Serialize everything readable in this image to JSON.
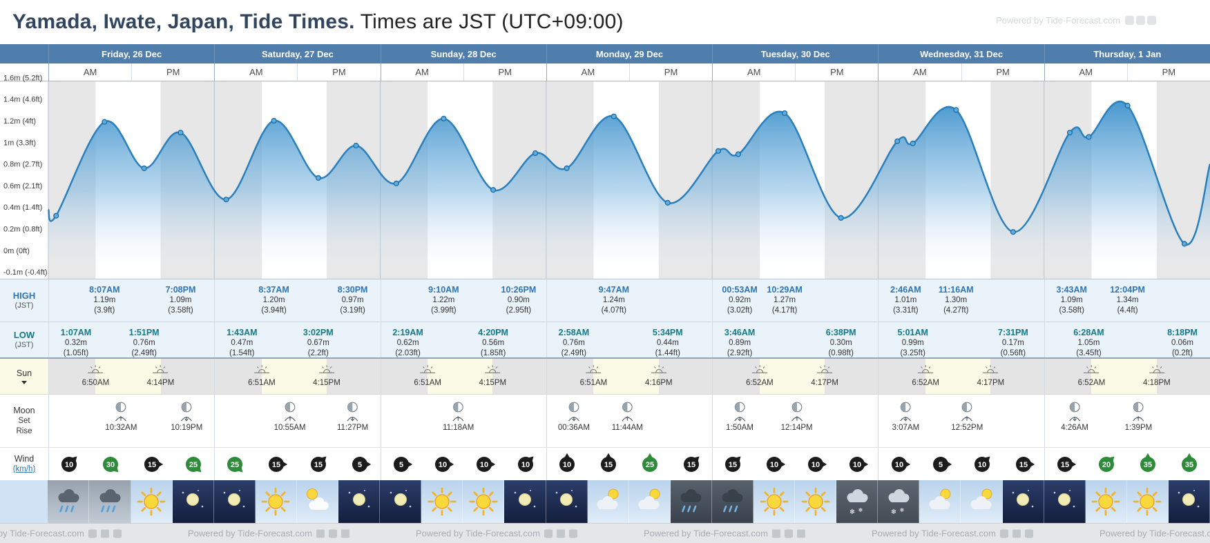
{
  "page_title": {
    "bold": "Yamada, Iwate, Japan, Tide Times.",
    "normal": "Times are JST (UTC+09:00)"
  },
  "watermark_text": "Powered by Tide-Forecast.com",
  "ampm": {
    "am": "AM",
    "pm": "PM"
  },
  "row_labels": {
    "high": "HIGH",
    "low": "LOW",
    "jst": "(JST)",
    "sun": "Sun",
    "moon": "Moon",
    "set": "Set",
    "rise": "Rise",
    "wind": "Wind",
    "wind_unit": "(km/h)"
  },
  "y_axis_labels": [
    "1.6m (5.2ft)",
    "1.4m (4.6ft)",
    "1.2m (4ft)",
    "1m (3.3ft)",
    "0.8m (2.7ft)",
    "0.6m (2.1ft)",
    "0.4m (1.4ft)",
    "0.2m (0.8ft)",
    "0m (0ft)",
    "-0.1m (-0.4ft)"
  ],
  "colors": {
    "header_blue": "#4f7dac",
    "high_time_blue": "#2e75b5",
    "low_time_teal": "#117a8a",
    "curve_blue": "#2a7fbd",
    "night_shade_gray": "#e7e7e7",
    "sun_row_yellow": "#fbfae6",
    "wind_normal": "#1c1c1c",
    "wind_strong_green": "#2e8b3a"
  },
  "days": [
    {
      "name": "Friday, 26 Dec",
      "high_tides": [
        {
          "time": "8:07AM",
          "hour": 8.12,
          "height_m": "1.19m",
          "height_ft": "(3.9ft)"
        },
        {
          "time": "7:08PM",
          "hour": 19.13,
          "height_m": "1.09m",
          "height_ft": "(3.58ft)"
        }
      ],
      "low_tides": [
        {
          "time": "1:07AM",
          "hour": 1.12,
          "height_m": "0.32m",
          "height_ft": "(1.05ft)"
        },
        {
          "time": "1:51PM",
          "hour": 13.85,
          "height_m": "0.76m",
          "height_ft": "(2.49ft)"
        }
      ],
      "sunrise": {
        "time": "6:50AM",
        "hour": 6.83
      },
      "sunset": {
        "time": "4:14PM",
        "hour": 16.23
      },
      "moon_events": [
        {
          "type": "rise",
          "time": "10:32AM",
          "hour": 10.53
        },
        {
          "type": "set",
          "time": "10:19PM",
          "hour": 22.32
        }
      ],
      "wind": [
        {
          "speed": 10,
          "dir_deg": 45,
          "hour": 3
        },
        {
          "speed": 30,
          "dir_deg": 135,
          "hour": 9
        },
        {
          "speed": 15,
          "dir_deg": 90,
          "hour": 15
        },
        {
          "speed": 25,
          "dir_deg": 135,
          "hour": 21
        }
      ],
      "weather": [
        "rain",
        "rain",
        "sunny",
        "clear-night"
      ]
    },
    {
      "name": "Saturday, 27 Dec",
      "high_tides": [
        {
          "time": "8:37AM",
          "hour": 8.62,
          "height_m": "1.20m",
          "height_ft": "(3.94ft)"
        },
        {
          "time": "8:30PM",
          "hour": 20.5,
          "height_m": "0.97m",
          "height_ft": "(3.19ft)"
        }
      ],
      "low_tides": [
        {
          "time": "1:43AM",
          "hour": 1.72,
          "height_m": "0.47m",
          "height_ft": "(1.54ft)"
        },
        {
          "time": "3:02PM",
          "hour": 15.03,
          "height_m": "0.67m",
          "height_ft": "(2.2ft)"
        }
      ],
      "sunrise": {
        "time": "6:51AM",
        "hour": 6.85
      },
      "sunset": {
        "time": "4:15PM",
        "hour": 16.25
      },
      "moon_events": [
        {
          "type": "rise",
          "time": "10:55AM",
          "hour": 10.92
        },
        {
          "type": "set",
          "time": "11:27PM",
          "hour": 23.45
        }
      ],
      "wind": [
        {
          "speed": 25,
          "dir_deg": 135,
          "hour": 3
        },
        {
          "speed": 15,
          "dir_deg": 90,
          "hour": 9
        },
        {
          "speed": 15,
          "dir_deg": 45,
          "hour": 15
        },
        {
          "speed": 5,
          "dir_deg": 90,
          "hour": 21
        }
      ],
      "weather": [
        "clear-night",
        "sunny",
        "partly-sunny",
        "clear-night"
      ]
    },
    {
      "name": "Sunday, 28 Dec",
      "high_tides": [
        {
          "time": "9:10AM",
          "hour": 9.17,
          "height_m": "1.22m",
          "height_ft": "(3.99ft)"
        },
        {
          "time": "10:26PM",
          "hour": 22.43,
          "height_m": "0.90m",
          "height_ft": "(2.95ft)"
        }
      ],
      "low_tides": [
        {
          "time": "2:19AM",
          "hour": 2.32,
          "height_m": "0.62m",
          "height_ft": "(2.03ft)"
        },
        {
          "time": "4:20PM",
          "hour": 16.33,
          "height_m": "0.56m",
          "height_ft": "(1.85ft)"
        }
      ],
      "sunrise": {
        "time": "6:51AM",
        "hour": 6.85
      },
      "sunset": {
        "time": "4:15PM",
        "hour": 16.25
      },
      "moon_events": [
        {
          "type": "rise",
          "time": "11:18AM",
          "hour": 11.3
        }
      ],
      "wind": [
        {
          "speed": 5,
          "dir_deg": 90,
          "hour": 3
        },
        {
          "speed": 10,
          "dir_deg": 90,
          "hour": 9
        },
        {
          "speed": 10,
          "dir_deg": 90,
          "hour": 15
        },
        {
          "speed": 10,
          "dir_deg": 45,
          "hour": 21
        }
      ],
      "weather": [
        "clear-night",
        "sunny",
        "sunny",
        "clear-night"
      ]
    },
    {
      "name": "Monday, 29 Dec",
      "high_tides": [
        {
          "time": "9:47AM",
          "hour": 9.78,
          "height_m": "1.24m",
          "height_ft": "(4.07ft)"
        }
      ],
      "low_tides": [
        {
          "time": "2:58AM",
          "hour": 2.97,
          "height_m": "0.76m",
          "height_ft": "(2.49ft)"
        },
        {
          "time": "5:34PM",
          "hour": 17.57,
          "height_m": "0.44m",
          "height_ft": "(1.44ft)"
        }
      ],
      "sunrise": {
        "time": "6:51AM",
        "hour": 6.85
      },
      "sunset": {
        "time": "4:16PM",
        "hour": 16.27
      },
      "moon_events": [
        {
          "type": "set",
          "time": "00:36AM",
          "hour": 0.6
        },
        {
          "type": "rise",
          "time": "11:44AM",
          "hour": 11.73
        }
      ],
      "wind": [
        {
          "speed": 10,
          "dir_deg": 0,
          "hour": 3
        },
        {
          "speed": 15,
          "dir_deg": 0,
          "hour": 9
        },
        {
          "speed": 25,
          "dir_deg": 0,
          "hour": 15
        },
        {
          "speed": 15,
          "dir_deg": 45,
          "hour": 21
        }
      ],
      "weather": [
        "clear-night",
        "partly-cloudy",
        "partly-cloudy",
        "rain-night"
      ]
    },
    {
      "name": "Tuesday, 30 Dec",
      "high_tides": [
        {
          "time": "00:53AM",
          "hour": 0.88,
          "height_m": "0.92m",
          "height_ft": "(3.02ft)"
        },
        {
          "time": "10:29AM",
          "hour": 10.48,
          "height_m": "1.27m",
          "height_ft": "(4.17ft)"
        }
      ],
      "low_tides": [
        {
          "time": "3:46AM",
          "hour": 3.77,
          "height_m": "0.89m",
          "height_ft": "(2.92ft)"
        },
        {
          "time": "6:38PM",
          "hour": 18.63,
          "height_m": "0.30m",
          "height_ft": "(0.98ft)"
        }
      ],
      "sunrise": {
        "time": "6:52AM",
        "hour": 6.87
      },
      "sunset": {
        "time": "4:17PM",
        "hour": 16.28
      },
      "moon_events": [
        {
          "type": "set",
          "time": "1:50AM",
          "hour": 1.83
        },
        {
          "type": "rise",
          "time": "12:14PM",
          "hour": 12.23
        }
      ],
      "wind": [
        {
          "speed": 15,
          "dir_deg": 45,
          "hour": 3
        },
        {
          "speed": 10,
          "dir_deg": 90,
          "hour": 9
        },
        {
          "speed": 10,
          "dir_deg": 90,
          "hour": 15
        },
        {
          "speed": 10,
          "dir_deg": 90,
          "hour": 21
        }
      ],
      "weather": [
        "rain-night",
        "sunny",
        "sunny",
        "snow-night"
      ]
    },
    {
      "name": "Wednesday, 31 Dec",
      "high_tides": [
        {
          "time": "2:46AM",
          "hour": 2.77,
          "height_m": "1.01m",
          "height_ft": "(3.31ft)"
        },
        {
          "time": "11:16AM",
          "hour": 11.27,
          "height_m": "1.30m",
          "height_ft": "(4.27ft)"
        }
      ],
      "low_tides": [
        {
          "time": "5:01AM",
          "hour": 5.02,
          "height_m": "0.99m",
          "height_ft": "(3.25ft)"
        },
        {
          "time": "7:31PM",
          "hour": 19.52,
          "height_m": "0.17m",
          "height_ft": "(0.56ft)"
        }
      ],
      "sunrise": {
        "time": "6:52AM",
        "hour": 6.87
      },
      "sunset": {
        "time": "4:17PM",
        "hour": 16.28
      },
      "moon_events": [
        {
          "type": "set",
          "time": "3:07AM",
          "hour": 3.12
        },
        {
          "type": "rise",
          "time": "12:52PM",
          "hour": 12.87
        }
      ],
      "wind": [
        {
          "speed": 10,
          "dir_deg": 90,
          "hour": 3
        },
        {
          "speed": 5,
          "dir_deg": 90,
          "hour": 9
        },
        {
          "speed": 10,
          "dir_deg": 45,
          "hour": 15
        },
        {
          "speed": 15,
          "dir_deg": 90,
          "hour": 21
        }
      ],
      "weather": [
        "snow-night",
        "partly-cloudy",
        "partly-cloudy",
        "clear-night"
      ]
    },
    {
      "name": "Thursday, 1 Jan",
      "high_tides": [
        {
          "time": "3:43AM",
          "hour": 3.72,
          "height_m": "1.09m",
          "height_ft": "(3.58ft)"
        },
        {
          "time": "12:04PM",
          "hour": 12.07,
          "height_m": "1.34m",
          "height_ft": "(4.4ft)"
        }
      ],
      "low_tides": [
        {
          "time": "6:28AM",
          "hour": 6.47,
          "height_m": "1.05m",
          "height_ft": "(3.45ft)"
        },
        {
          "time": "8:18PM",
          "hour": 20.3,
          "height_m": "0.06m",
          "height_ft": "(0.2ft)"
        }
      ],
      "sunrise": {
        "time": "6:52AM",
        "hour": 6.87
      },
      "sunset": {
        "time": "4:18PM",
        "hour": 16.3
      },
      "moon_events": [
        {
          "type": "set",
          "time": "4:26AM",
          "hour": 4.43
        },
        {
          "type": "rise",
          "time": "1:39PM",
          "hour": 13.65
        }
      ],
      "wind": [
        {
          "speed": 15,
          "dir_deg": 90,
          "hour": 3
        },
        {
          "speed": 20,
          "dir_deg": 45,
          "hour": 9
        },
        {
          "speed": 35,
          "dir_deg": 0,
          "hour": 15
        },
        {
          "speed": 35,
          "dir_deg": 0,
          "hour": 21
        }
      ],
      "weather": [
        "clear-night",
        "sunny",
        "sunny",
        "clear-night"
      ]
    }
  ],
  "chart_data": {
    "type": "area",
    "title": "Tide height curve, Yamada, Iwate, Japan (7 days)",
    "x_unit": "hours since Friday 26 Dec 00:00 JST",
    "y_unit": "meters",
    "y_range_m": [
      -0.2,
      1.6
    ],
    "night_shading": true,
    "points_hours_meters": [
      [
        0,
        0.38
      ],
      [
        1.12,
        0.32
      ],
      [
        8.12,
        1.19
      ],
      [
        13.85,
        0.76
      ],
      [
        19.13,
        1.09
      ],
      [
        25.72,
        0.47
      ],
      [
        32.62,
        1.2
      ],
      [
        39.05,
        0.67
      ],
      [
        44.5,
        0.97
      ],
      [
        50.32,
        0.62
      ],
      [
        57.17,
        1.22
      ],
      [
        64.33,
        0.56
      ],
      [
        70.43,
        0.9
      ],
      [
        74.97,
        0.76
      ],
      [
        81.78,
        1.24
      ],
      [
        89.57,
        0.44
      ],
      [
        96.88,
        0.92
      ],
      [
        99.77,
        0.89
      ],
      [
        106.48,
        1.27
      ],
      [
        114.63,
        0.3
      ],
      [
        122.77,
        1.01
      ],
      [
        125.02,
        0.99
      ],
      [
        131.27,
        1.3
      ],
      [
        139.52,
        0.17
      ],
      [
        147.72,
        1.09
      ],
      [
        150.47,
        1.05
      ],
      [
        156.07,
        1.34
      ],
      [
        164.3,
        0.06
      ],
      [
        168,
        0.8
      ]
    ]
  }
}
